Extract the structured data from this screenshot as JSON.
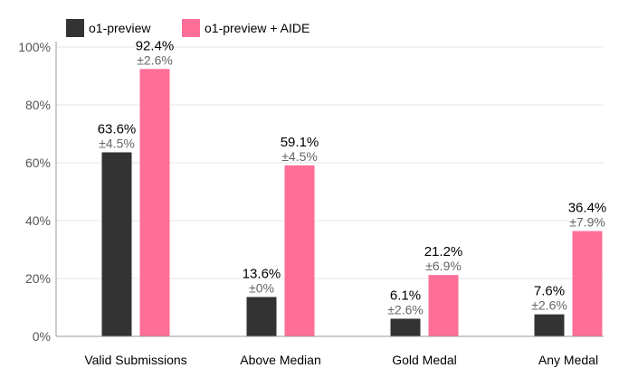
{
  "chart_data": {
    "type": "bar",
    "categories": [
      "Valid Submissions",
      "Above Median",
      "Gold Medal",
      "Any Medal"
    ],
    "series": [
      {
        "name": "o1-preview",
        "color": "#333333",
        "values": [
          63.6,
          13.6,
          6.1,
          7.6
        ],
        "value_labels": [
          "63.6%",
          "13.6%",
          "6.1%",
          "7.6%"
        ],
        "error_labels": [
          "±4.5%",
          "±0%",
          "±2.6%",
          "±2.6%"
        ]
      },
      {
        "name": "o1-preview + AIDE",
        "color": "#ff6e96",
        "values": [
          92.4,
          59.1,
          21.2,
          36.4
        ],
        "value_labels": [
          "92.4%",
          "59.1%",
          "21.2%",
          "36.4%"
        ],
        "error_labels": [
          "±2.6%",
          "±4.5%",
          "±6.9%",
          "±7.9%"
        ]
      }
    ],
    "ylim": [
      0,
      100
    ],
    "yticks": [
      0,
      20,
      40,
      60,
      80,
      100
    ],
    "ytick_labels": [
      "0%",
      "20%",
      "40%",
      "60%",
      "80%",
      "100%"
    ],
    "grid": true,
    "legend_position": "top-left",
    "value_label_color": "#000000",
    "error_label_color": "#666666",
    "axis_text_color": "#555555",
    "grid_color": "#e6e6e6"
  }
}
